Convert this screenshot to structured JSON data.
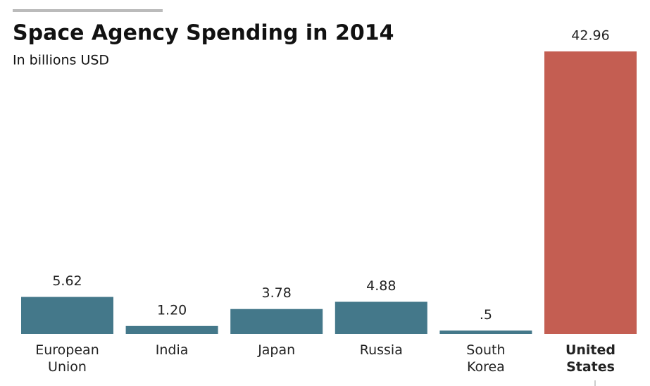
{
  "chart_data": {
    "type": "bar",
    "title": "Space Agency Spending in 2014",
    "subtitle": "In billions USD",
    "categories": [
      "European Union",
      "India",
      "Japan",
      "Russia",
      "South Korea",
      "United States"
    ],
    "values": [
      5.62,
      1.2,
      3.78,
      4.88,
      0.5,
      42.96
    ],
    "value_labels": [
      "5.62",
      "1.20",
      "3.78",
      "4.88",
      ".5",
      "42.96"
    ],
    "colors": [
      "#44788a",
      "#44788a",
      "#44788a",
      "#44788a",
      "#44788a",
      "#c45e52"
    ]
  }
}
